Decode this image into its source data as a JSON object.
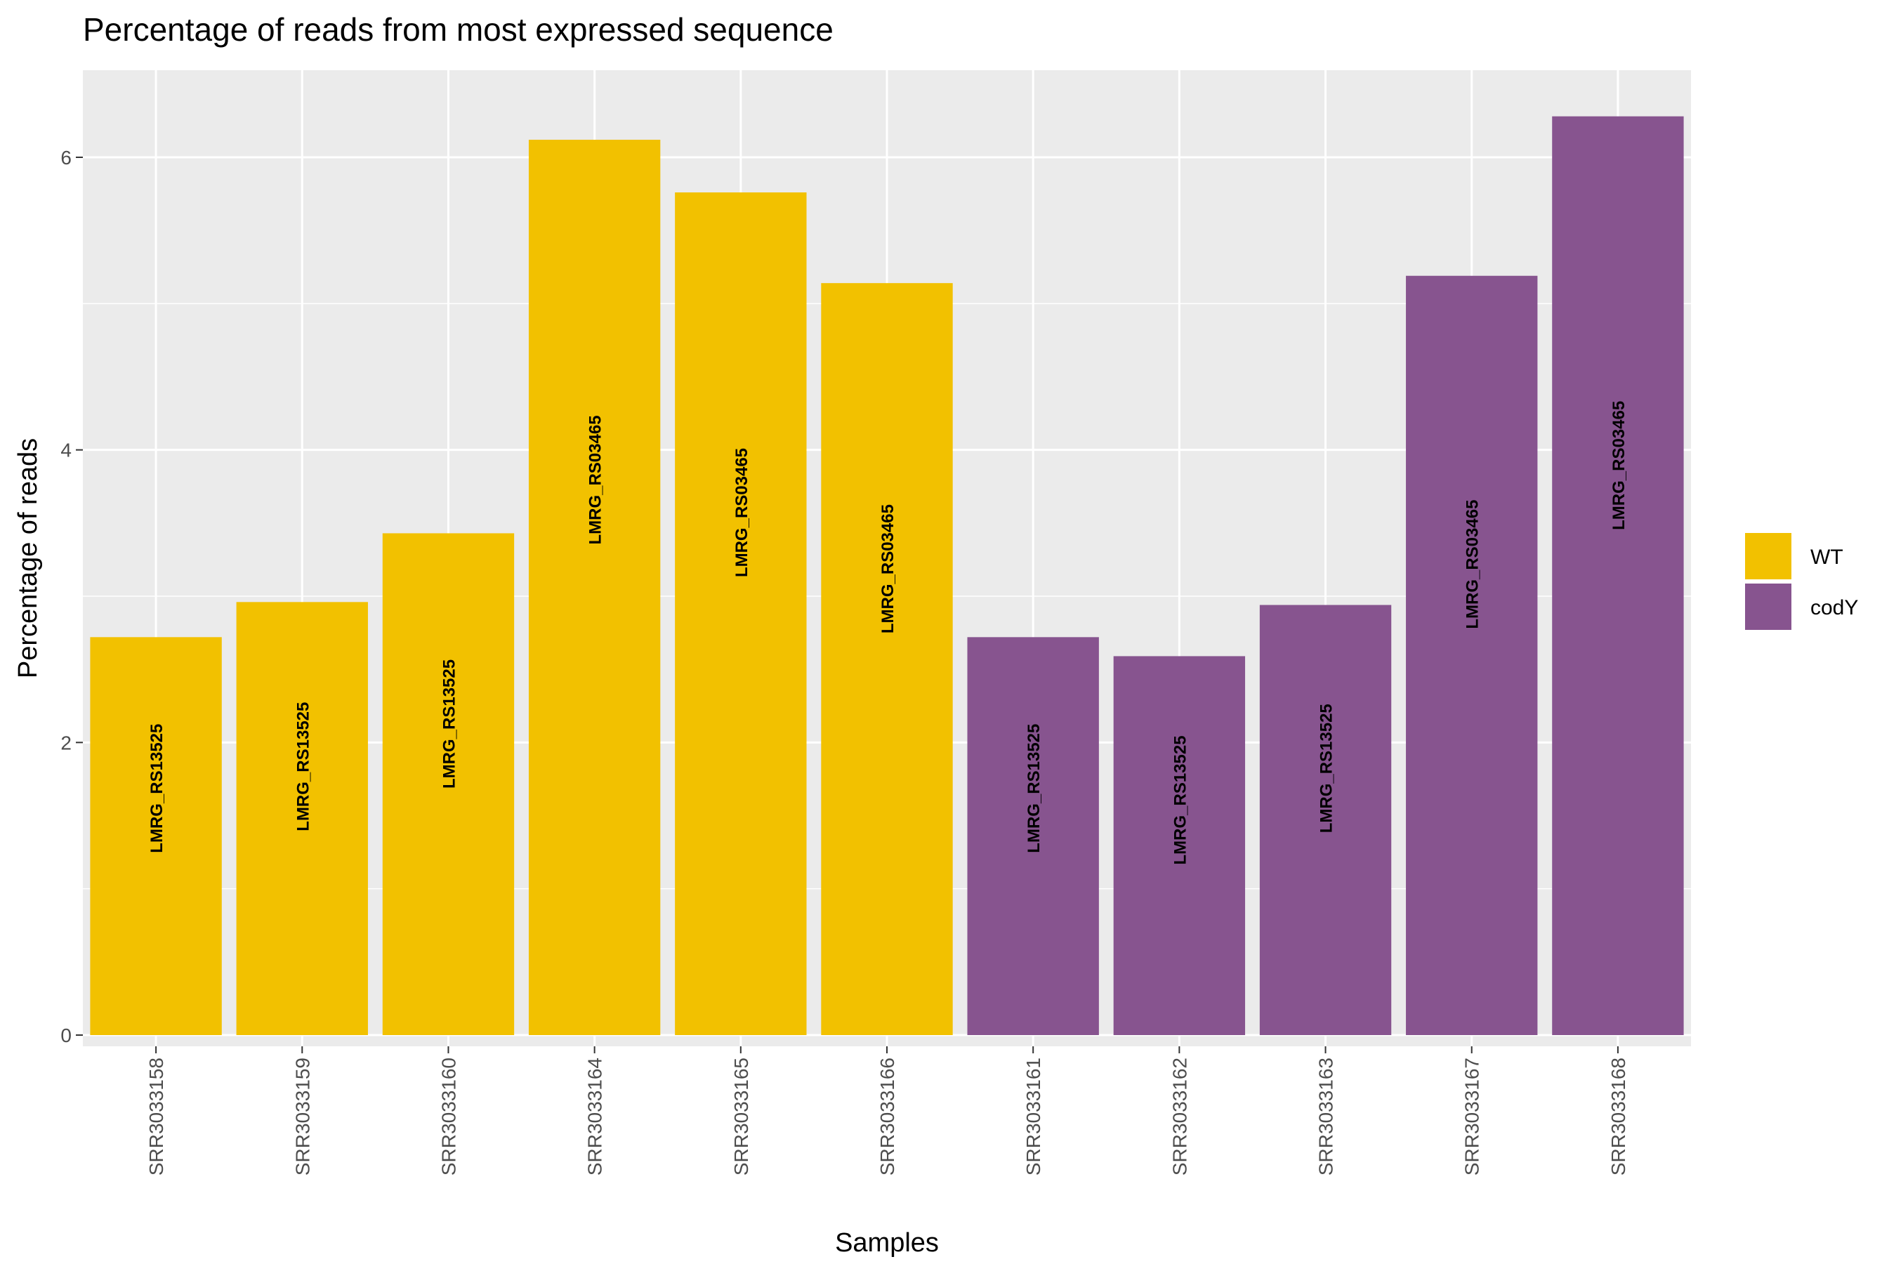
{
  "chart_data": {
    "type": "bar",
    "title": "Percentage of reads from most expressed sequence",
    "xlabel": "Samples",
    "ylabel": "Percentage of reads",
    "ylim": [
      0,
      6.6
    ],
    "yticks": [
      0,
      2,
      4,
      6
    ],
    "grid": true,
    "legend_position": "right",
    "groups": [
      {
        "name": "WT",
        "color": "#F2C100"
      },
      {
        "name": "codY",
        "color": "#87548F"
      }
    ],
    "categories": [
      "SRR3033158",
      "SRR3033159",
      "SRR3033160",
      "SRR3033164",
      "SRR3033165",
      "SRR3033166",
      "SRR3033161",
      "SRR3033162",
      "SRR3033163",
      "SRR3033167",
      "SRR3033168"
    ],
    "values": [
      2.72,
      2.96,
      3.43,
      6.12,
      5.76,
      5.14,
      2.72,
      2.59,
      2.94,
      5.19,
      6.28
    ],
    "group_of_bar": [
      "WT",
      "WT",
      "WT",
      "WT",
      "WT",
      "WT",
      "codY",
      "codY",
      "codY",
      "codY",
      "codY"
    ],
    "bar_labels": [
      "LMRG_RS13525",
      "LMRG_RS13525",
      "LMRG_RS13525",
      "LMRG_RS03465",
      "LMRG_RS03465",
      "LMRG_RS03465",
      "LMRG_RS13525",
      "LMRG_RS13525",
      "LMRG_RS13525",
      "LMRG_RS03465",
      "LMRG_RS03465"
    ]
  }
}
